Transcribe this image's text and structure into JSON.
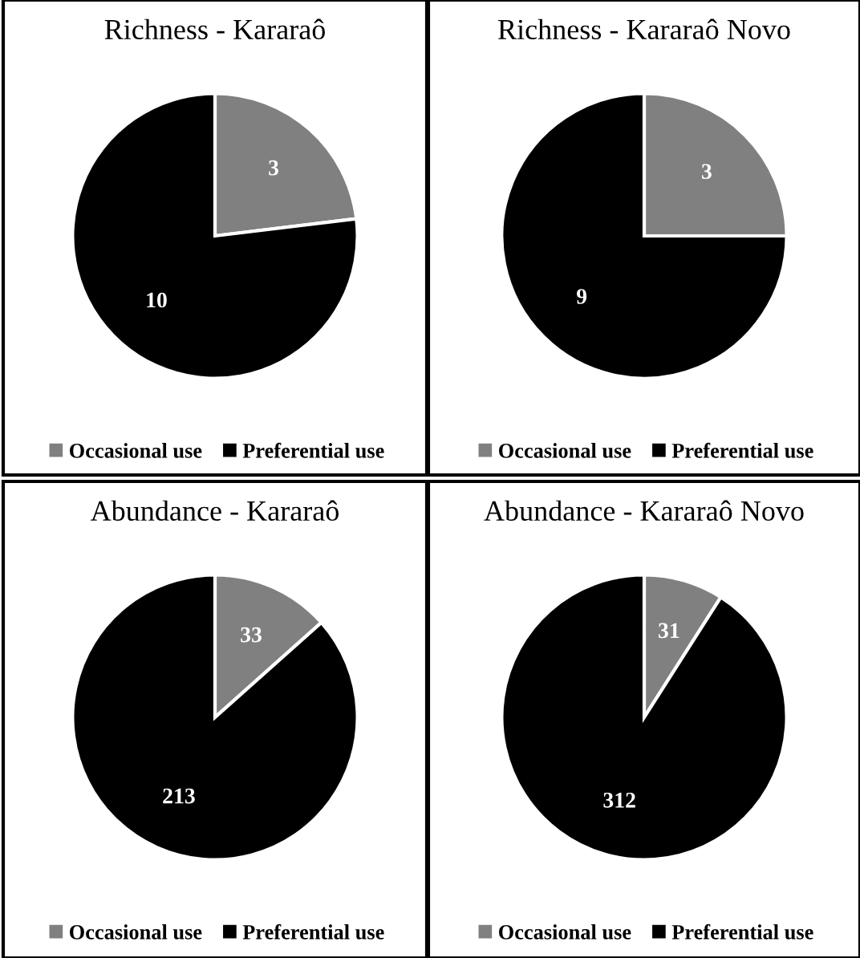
{
  "chart_data": [
    {
      "type": "pie",
      "title": "Richness - Kararaô",
      "categories": [
        "Occasional use",
        "Preferential use"
      ],
      "values": [
        3,
        10
      ],
      "colors": [
        "#808080",
        "#000000"
      ],
      "data_labels": true,
      "legend": "bottom"
    },
    {
      "type": "pie",
      "title": "Richness - Kararaô Novo",
      "categories": [
        "Occasional use",
        "Preferential use"
      ],
      "values": [
        3,
        9
      ],
      "colors": [
        "#808080",
        "#000000"
      ],
      "data_labels": true,
      "legend": "bottom"
    },
    {
      "type": "pie",
      "title": "Abundance - Kararaô",
      "categories": [
        "Occasional use",
        "Preferential use"
      ],
      "values": [
        33,
        213
      ],
      "colors": [
        "#808080",
        "#000000"
      ],
      "data_labels": true,
      "legend": "bottom"
    },
    {
      "type": "pie",
      "title": "Abundance - Kararaô Novo",
      "categories": [
        "Occasional use",
        "Preferential use"
      ],
      "values": [
        31,
        312
      ],
      "colors": [
        "#808080",
        "#000000"
      ],
      "data_labels": true,
      "legend": "bottom"
    }
  ]
}
